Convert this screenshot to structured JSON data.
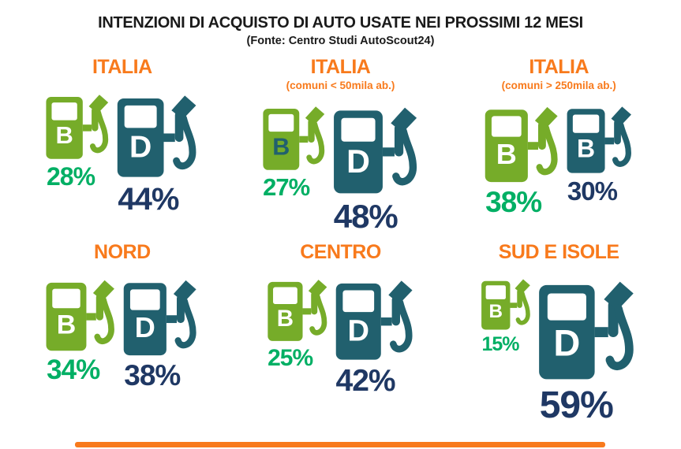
{
  "title": "INTENZIONI DI ACQUISTO DI AUTO USATE NEI PROSSIMI 12 MESI",
  "subtitle": "(Fonte: Centro Studi AutoScout24)",
  "colors": {
    "ink": "#1a1a1a",
    "header_orange": "#f87a1c",
    "pump_green": "#76ac29",
    "pump_teal": "#21606e",
    "percent_green": "#00af64",
    "percent_navy": "#1f3864",
    "letter_white": "#ffffff",
    "footer_orange": "#f87a1c"
  },
  "chart_data": {
    "type": "pictogram",
    "title": "INTENZIONI DI ACQUISTO DI AUTO USATE NEI PROSSIMI 12 MESI",
    "subtitle": "(Fonte: Centro Studi AutoScout24)",
    "value_unit": "%",
    "layout": "2 rows x 3 columns of region panels; two fuel-pump icons per panel (green petrol 'B', teal diesel 'D'), icon size proportional to percentage, percentage label under each pump",
    "panels": [
      {
        "region": "ITALIA",
        "region_note": "",
        "pumps": [
          {
            "letter": "B",
            "value": 28,
            "value_label": "28%",
            "color": "green",
            "value_color": "green",
            "letter_color": "white"
          },
          {
            "letter": "D",
            "value": 44,
            "value_label": "44%",
            "color": "teal",
            "value_color": "navy",
            "letter_color": "white"
          }
        ]
      },
      {
        "region": "ITALIA",
        "region_note": "(comuni < 50mila ab.)",
        "pumps": [
          {
            "letter": "B",
            "value": 27,
            "value_label": "27%",
            "color": "green",
            "value_color": "green",
            "letter_color": "teal"
          },
          {
            "letter": "D",
            "value": 48,
            "value_label": "48%",
            "color": "teal",
            "value_color": "navy",
            "letter_color": "white"
          }
        ]
      },
      {
        "region": "ITALIA",
        "region_note": "(comuni > 250mila ab.)",
        "pumps": [
          {
            "letter": "B",
            "value": 38,
            "value_label": "38%",
            "color": "green",
            "value_color": "green",
            "letter_color": "white"
          },
          {
            "letter": "B",
            "value": 30,
            "value_label": "30%",
            "color": "teal",
            "value_color": "navy",
            "letter_color": "white"
          }
        ]
      },
      {
        "region": "NORD",
        "region_note": "",
        "pumps": [
          {
            "letter": "B",
            "value": 34,
            "value_label": "34%",
            "color": "green",
            "value_color": "green",
            "letter_color": "white"
          },
          {
            "letter": "D",
            "value": 38,
            "value_label": "38%",
            "color": "teal",
            "value_color": "navy",
            "letter_color": "white"
          }
        ]
      },
      {
        "region": "CENTRO",
        "region_note": "",
        "pumps": [
          {
            "letter": "B",
            "value": 25,
            "value_label": "25%",
            "color": "green",
            "value_color": "green",
            "letter_color": "white"
          },
          {
            "letter": "D",
            "value": 42,
            "value_label": "42%",
            "color": "teal",
            "value_color": "navy",
            "letter_color": "white"
          }
        ]
      },
      {
        "region": "SUD E ISOLE",
        "region_note": "",
        "pumps": [
          {
            "letter": "B",
            "value": 15,
            "value_label": "15%",
            "color": "green",
            "value_color": "green",
            "letter_color": "white"
          },
          {
            "letter": "D",
            "value": 59,
            "value_label": "59%",
            "color": "teal",
            "value_color": "navy",
            "letter_color": "white"
          }
        ]
      }
    ]
  }
}
